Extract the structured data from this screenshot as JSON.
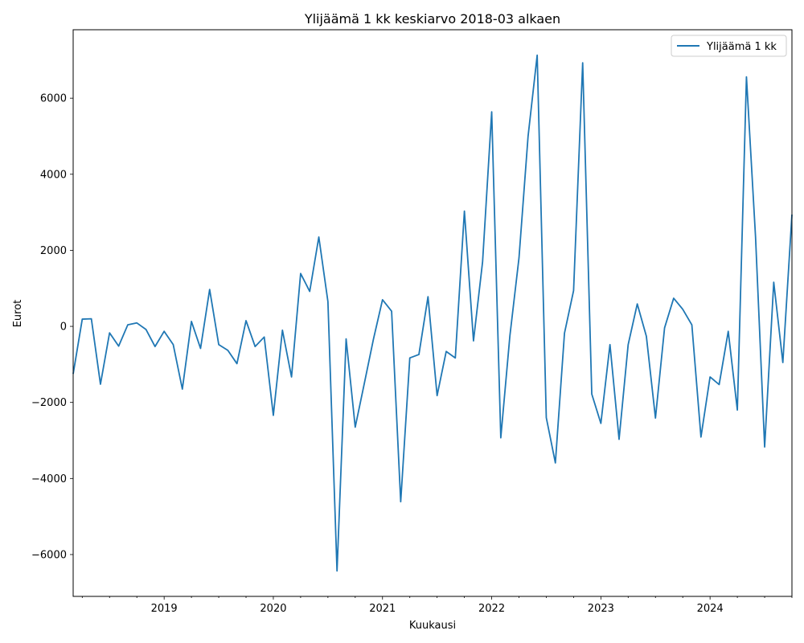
{
  "chart_data": {
    "type": "line",
    "title": "Ylijäämä 1 kk keskiarvo 2018-03 alkaen",
    "xlabel": "Kuukausi",
    "ylabel": "Eurot",
    "x_start": "2018-03",
    "x_end": "2024-10",
    "ylim": [
      -7100,
      7800
    ],
    "x_ticks": [
      "2019",
      "2020",
      "2021",
      "2022",
      "2023",
      "2024"
    ],
    "y_ticks": [
      -6000,
      -4000,
      -2000,
      0,
      2000,
      4000,
      6000
    ],
    "legend": "top-right",
    "grid": false,
    "color": "#1f77b4",
    "series": [
      {
        "name": "Ylijäämä 1 kk",
        "values": [
          -1250,
          190,
          200,
          -1520,
          -170,
          -520,
          40,
          90,
          -80,
          -530,
          -130,
          -480,
          -1650,
          130,
          -580,
          970,
          -480,
          -630,
          -980,
          150,
          -530,
          -280,
          -2340,
          -100,
          -1330,
          1390,
          920,
          2350,
          650,
          -6430,
          -330,
          -2650,
          -1500,
          -340,
          700,
          400,
          -4610,
          -830,
          -740,
          780,
          -1820,
          -660,
          -830,
          3030,
          -380,
          1700,
          5640,
          -2930,
          -250,
          1800,
          5000,
          7130,
          -2400,
          -3590,
          -180,
          940,
          6930,
          -1780,
          -2550,
          -480,
          -2970,
          -480,
          590,
          -260,
          -2410,
          -40,
          740,
          450,
          40,
          -2910,
          -1330,
          -1530,
          -130,
          -2200,
          6560,
          2350,
          -3170,
          1160,
          -950,
          2940
        ]
      }
    ]
  }
}
